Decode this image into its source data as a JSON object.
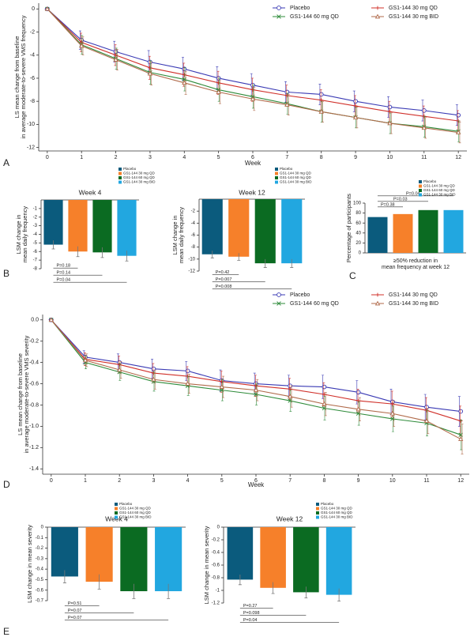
{
  "chart_data": [
    {
      "type": "line",
      "panel": "A",
      "ylabel": [
        "LS mean change from baseline",
        "in average moderate-to-severe VMS frequency"
      ],
      "xlabel": "Week",
      "x": [
        0,
        1,
        2,
        3,
        4,
        5,
        6,
        7,
        8,
        9,
        10,
        11,
        12
      ],
      "xlim": [
        -0.25,
        12.25
      ],
      "xticks": [
        0,
        1,
        2,
        3,
        4,
        5,
        6,
        7,
        8,
        9,
        10,
        11,
        12
      ],
      "ylim": [
        -12.3,
        0.5
      ],
      "yticks": [
        0,
        -2,
        -4,
        -6,
        -8,
        -10,
        -12
      ],
      "series": [
        {
          "name": "Placebo",
          "color": "#3a3ab4",
          "marker": "circle",
          "values": [
            0,
            -2.7,
            -3.7,
            -4.6,
            -5.2,
            -6.0,
            -6.6,
            -7.2,
            -7.4,
            -8.0,
            -8.5,
            -8.8,
            -9.2
          ],
          "errors": [
            0,
            0.8,
            0.9,
            1.0,
            1.0,
            1.0,
            1.0,
            0.9,
            0.9,
            0.9,
            0.9,
            0.9,
            0.9
          ]
        },
        {
          "name": "GS1-144 30 mg QD",
          "color": "#d0302a",
          "marker": "plus",
          "values": [
            0,
            -2.9,
            -4.0,
            -5.1,
            -5.7,
            -6.4,
            -7.0,
            -7.5,
            -7.9,
            -8.4,
            -8.9,
            -9.3,
            -9.7
          ],
          "errors": [
            0,
            0.8,
            0.9,
            1.0,
            1.0,
            1.0,
            1.0,
            0.9,
            0.9,
            0.9,
            0.9,
            0.9,
            0.9
          ]
        },
        {
          "name": "GS1-144 60 mg QD",
          "color": "#2e8b3a",
          "marker": "x",
          "values": [
            0,
            -3.1,
            -4.3,
            -5.5,
            -6.1,
            -7.0,
            -7.6,
            -8.2,
            -8.9,
            -9.4,
            -9.9,
            -10.2,
            -10.6
          ],
          "errors": [
            0,
            0.8,
            0.9,
            1.0,
            1.0,
            1.0,
            1.0,
            0.9,
            0.9,
            0.9,
            0.9,
            0.9,
            0.9
          ]
        },
        {
          "name": "GS1-144 30 mg BID",
          "color": "#b06a4a",
          "marker": "triangle",
          "values": [
            0,
            -3.2,
            -4.4,
            -5.6,
            -6.4,
            -7.2,
            -7.8,
            -8.3,
            -8.9,
            -9.4,
            -9.9,
            -10.3,
            -10.7
          ],
          "errors": [
            0,
            0.8,
            0.9,
            1.0,
            1.0,
            1.0,
            1.0,
            0.9,
            0.9,
            0.9,
            0.9,
            0.9,
            0.9
          ]
        }
      ]
    },
    {
      "type": "bar",
      "panel": "B",
      "title": "Week 4",
      "ylabel": [
        "LSM change in",
        "mean daily frequency"
      ],
      "categories": [
        "Placebo",
        "GS1-144 30 mg QD",
        "GS1-144 60 mg QD",
        "GS1-144 30 mg BID"
      ],
      "colors": [
        "#0b5b7d",
        "#f6802a",
        "#0b6b22",
        "#22a7e0"
      ],
      "values": [
        -5.2,
        -6.0,
        -6.1,
        -6.5
      ],
      "errors": [
        0.5,
        0.6,
        0.6,
        0.6
      ],
      "ylim": [
        -8,
        0
      ],
      "yticks": [
        -1,
        -2,
        -3,
        -4,
        -5,
        -6,
        -7,
        -8
      ],
      "p_values": [
        "P=0.18",
        "P=0.14",
        "P=0.04"
      ]
    },
    {
      "type": "bar",
      "title": "Week 12",
      "ylabel": [
        "LSM change in",
        "mean daily frequency"
      ],
      "categories": [
        "Placebo",
        "GS1-144 30 mg QD",
        "GS1-144 60 mg QD",
        "GS1-144 30 mg BID"
      ],
      "colors": [
        "#0b5b7d",
        "#f6802a",
        "#0b6b22",
        "#22a7e0"
      ],
      "values": [
        -9.2,
        -9.6,
        -10.7,
        -10.7
      ],
      "errors": [
        0.6,
        0.6,
        0.7,
        0.7
      ],
      "ylim": [
        -12,
        0
      ],
      "yticks": [
        -2,
        -4,
        -6,
        -8,
        -10,
        -12
      ],
      "p_values": [
        "P=0.42",
        "P=0.007",
        "P=0.008"
      ]
    },
    {
      "type": "bar",
      "panel": "C",
      "ylabel": [
        "Percentage of participants"
      ],
      "xlabel": [
        "≥50% reduction in",
        "mean frequency at week 12"
      ],
      "categories": [
        "Placebo",
        "GS1-144 30 mg QD",
        "GS1-144 60 mg QD",
        "GS1-144 30 mg BID"
      ],
      "colors": [
        "#0b5b7d",
        "#f6802a",
        "#0b6b22",
        "#22a7e0"
      ],
      "values": [
        72,
        78,
        86,
        86
      ],
      "ylim": [
        0,
        100
      ],
      "yticks": [
        0,
        20,
        40,
        60,
        80,
        100
      ],
      "p_values": [
        "P=0.38",
        "P=0.03",
        "P=0.04"
      ]
    },
    {
      "type": "line",
      "panel": "D",
      "ylabel": [
        "LS mean change from baseline",
        "in average moderate-to-severe VMS severity"
      ],
      "xlabel": "Week",
      "x": [
        0,
        1,
        2,
        3,
        4,
        5,
        6,
        7,
        8,
        9,
        10,
        11,
        12
      ],
      "xlim": [
        -0.25,
        12.25
      ],
      "xticks": [
        0,
        1,
        2,
        3,
        4,
        5,
        6,
        7,
        8,
        9,
        10,
        11,
        12
      ],
      "ylim": [
        -1.45,
        0.05
      ],
      "yticks": [
        {
          "value": 0,
          "label": "0.0"
        },
        -0.2,
        -0.4,
        -0.6,
        -0.8,
        {
          "value": -1,
          "label": "-1.0"
        },
        -1.2,
        -1.4
      ],
      "series": [
        {
          "name": "Placebo",
          "color": "#3a3ab4",
          "marker": "circle",
          "values": [
            0,
            -0.35,
            -0.4,
            -0.46,
            -0.48,
            -0.57,
            -0.6,
            -0.62,
            -0.63,
            -0.68,
            -0.77,
            -0.82,
            -0.86
          ],
          "errors": [
            0,
            0.06,
            0.08,
            0.09,
            0.09,
            0.1,
            0.1,
            0.1,
            0.11,
            0.11,
            0.12,
            0.12,
            0.14
          ]
        },
        {
          "name": "GS1-144 30 mg QD",
          "color": "#d0302a",
          "marker": "plus",
          "values": [
            0,
            -0.37,
            -0.42,
            -0.5,
            -0.53,
            -0.58,
            -0.62,
            -0.65,
            -0.7,
            -0.76,
            -0.79,
            -0.85,
            -0.95
          ],
          "errors": [
            0,
            0.06,
            0.08,
            0.09,
            0.09,
            0.1,
            0.1,
            0.1,
            0.11,
            0.11,
            0.12,
            0.12,
            0.14
          ]
        },
        {
          "name": "GS1-144 60 mg QD",
          "color": "#2e8b3a",
          "marker": "x",
          "values": [
            0,
            -0.4,
            -0.49,
            -0.58,
            -0.62,
            -0.66,
            -0.7,
            -0.76,
            -0.83,
            -0.88,
            -0.93,
            -0.97,
            -1.08
          ],
          "errors": [
            0,
            0.06,
            0.08,
            0.09,
            0.09,
            0.1,
            0.1,
            0.1,
            0.11,
            0.11,
            0.12,
            0.12,
            0.14
          ]
        },
        {
          "name": "GS1-144 30 mg BID",
          "color": "#b06a4a",
          "marker": "triangle",
          "values": [
            0,
            -0.38,
            -0.47,
            -0.56,
            -0.6,
            -0.63,
            -0.66,
            -0.72,
            -0.79,
            -0.84,
            -0.88,
            -0.95,
            -1.12
          ],
          "errors": [
            0,
            0.06,
            0.08,
            0.09,
            0.09,
            0.1,
            0.1,
            0.1,
            0.11,
            0.11,
            0.12,
            0.12,
            0.14
          ]
        }
      ]
    },
    {
      "type": "bar",
      "panel": "E",
      "title": "Week 4",
      "ylabel": [
        "LSM change in mean severity"
      ],
      "categories": [
        "Placebo",
        "GS1-144 30 mg QD",
        "GS1-144 60 mg QD",
        "GS1-144 30 mg BID"
      ],
      "colors": [
        "#0b5b7d",
        "#f6802a",
        "#0b6b22",
        "#22a7e0"
      ],
      "values": [
        -0.47,
        -0.52,
        -0.61,
        -0.61
      ],
      "errors": [
        0.06,
        0.07,
        0.07,
        0.07
      ],
      "ylim": [
        -0.7,
        0
      ],
      "yticks": [
        0,
        -0.1,
        -0.2,
        -0.3,
        -0.4,
        -0.5,
        -0.6,
        -0.7
      ],
      "p_values": [
        "P=0.51",
        "P=0.07",
        "P=0.07"
      ]
    },
    {
      "type": "bar",
      "title": "Week 12",
      "ylabel": [
        "LSM change in mean severity"
      ],
      "categories": [
        "Placebo",
        "GS1-144 30 mg QD",
        "GS1-144 60 mg QD",
        "GS1-144 30 mg BID"
      ],
      "colors": [
        "#0b5b7d",
        "#f6802a",
        "#0b6b22",
        "#22a7e0"
      ],
      "values": [
        -0.83,
        -0.96,
        -1.03,
        -1.07
      ],
      "errors": [
        0.08,
        0.09,
        0.09,
        0.1
      ],
      "ylim": [
        -1.2,
        0
      ],
      "yticks": [
        0,
        -0.2,
        -0.4,
        -0.6,
        -0.8,
        -1,
        -1.2
      ],
      "p_values": [
        "P=0.27",
        "P=0.098",
        "P=0.04"
      ]
    }
  ]
}
